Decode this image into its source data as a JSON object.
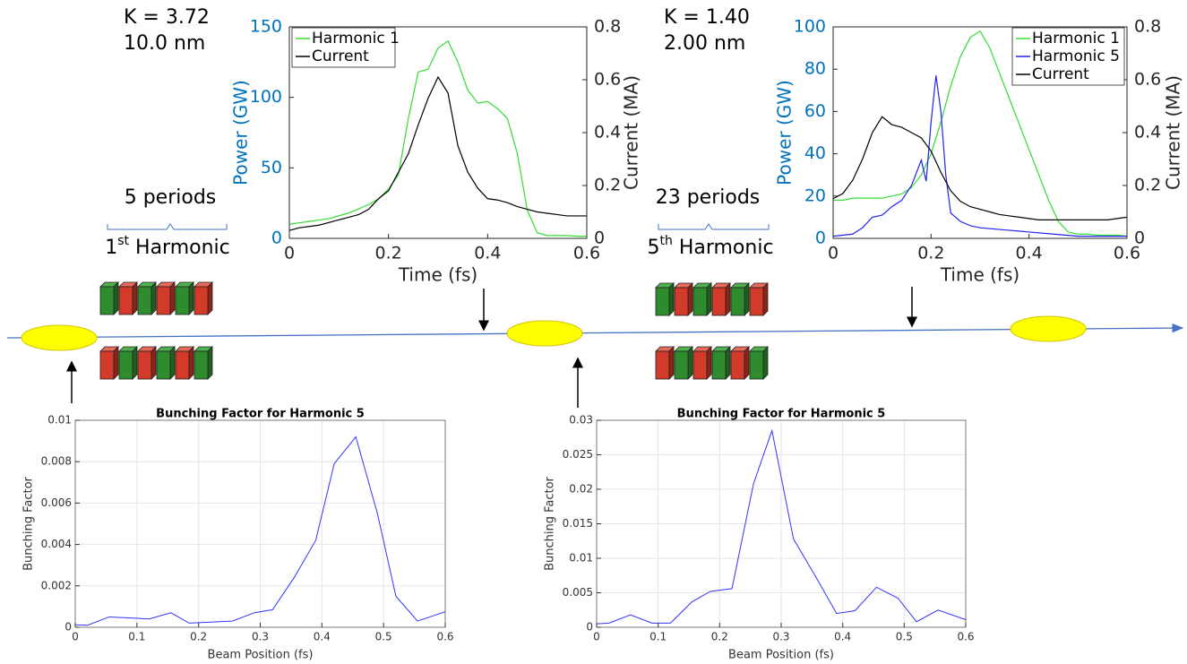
{
  "diagram": {
    "left": {
      "k": "K = 3.72",
      "wavelength": "10.0 nm",
      "periods": "5 periods",
      "harmonic": {
        "base": "1",
        "sup": "st",
        "text": " Harmonic"
      }
    },
    "right": {
      "k": "K = 1.40",
      "wavelength": "2.00 nm",
      "periods": "23 periods",
      "harmonic": {
        "base": "5",
        "sup": "th",
        "text": " Harmonic"
      }
    }
  },
  "chart_data": [
    {
      "type": "line",
      "xlabel": "Time (fs)",
      "ylabel": "Power (GW)",
      "y2label": "Current (MA)",
      "ylabel_color": "#0072bd",
      "xlim": [
        0,
        0.6
      ],
      "xticks": [
        0,
        0.2,
        0.4,
        0.6
      ],
      "ylim": [
        0,
        150
      ],
      "yticks": [
        0,
        50,
        100,
        150
      ],
      "y2lim": [
        0,
        0.8
      ],
      "y2ticks": [
        0,
        0.2,
        0.4,
        0.6,
        0.8
      ],
      "legend": "upper left",
      "grid": false,
      "x": [
        0,
        0.02,
        0.04,
        0.06,
        0.08,
        0.1,
        0.12,
        0.14,
        0.16,
        0.18,
        0.2,
        0.22,
        0.24,
        0.26,
        0.28,
        0.3,
        0.32,
        0.34,
        0.36,
        0.38,
        0.4,
        0.42,
        0.44,
        0.46,
        0.48,
        0.5,
        0.52,
        0.54,
        0.56,
        0.58,
        0.6
      ],
      "series": [
        {
          "name": "Harmonic 1",
          "color": "#33dd33",
          "values": [
            10,
            11,
            12,
            13,
            14,
            16,
            18,
            21,
            24,
            28,
            35,
            45,
            85,
            118,
            120,
            135,
            140,
            125,
            105,
            96,
            97,
            92,
            85,
            60,
            20,
            4,
            2,
            2,
            2,
            1.5,
            1.5
          ]
        },
        {
          "name": "Current",
          "color": "#000000",
          "axis": "y2",
          "values": [
            0.03,
            0.04,
            0.045,
            0.05,
            0.06,
            0.07,
            0.08,
            0.09,
            0.11,
            0.15,
            0.18,
            0.25,
            0.32,
            0.43,
            0.53,
            0.61,
            0.55,
            0.35,
            0.25,
            0.19,
            0.15,
            0.145,
            0.135,
            0.12,
            0.11,
            0.1,
            0.095,
            0.09,
            0.085,
            0.085,
            0.085
          ]
        }
      ]
    },
    {
      "type": "line",
      "xlabel": "Time (fs)",
      "ylabel": "Power (GW)",
      "y2label": "Current (MA)",
      "ylabel_color": "#0072bd",
      "xlim": [
        0,
        0.6
      ],
      "xticks": [
        0,
        0.2,
        0.4,
        0.6
      ],
      "ylim": [
        0,
        100
      ],
      "yticks": [
        0,
        20,
        40,
        60,
        80,
        100
      ],
      "y2lim": [
        0,
        0.8
      ],
      "y2ticks": [
        0,
        0.2,
        0.4,
        0.6,
        0.8
      ],
      "legend": "upper right",
      "grid": false,
      "x": [
        0,
        0.02,
        0.04,
        0.06,
        0.08,
        0.1,
        0.12,
        0.14,
        0.16,
        0.18,
        0.2,
        0.22,
        0.24,
        0.26,
        0.28,
        0.3,
        0.32,
        0.34,
        0.36,
        0.38,
        0.4,
        0.42,
        0.44,
        0.46,
        0.48,
        0.5,
        0.52,
        0.54,
        0.56,
        0.58,
        0.6
      ],
      "series": [
        {
          "name": "Harmonic 1",
          "color": "#33dd33",
          "values": [
            18,
            18,
            19,
            19,
            19,
            19,
            20,
            21,
            24,
            30,
            40,
            55,
            72,
            86,
            95,
            98,
            90,
            78,
            66,
            54,
            42,
            30,
            18,
            8,
            3,
            2,
            2,
            1.5,
            1.5,
            1.5,
            1
          ]
        },
        {
          "name": "Harmonic 5",
          "color": "#2222ee",
          "x": [
            0,
            0.04,
            0.06,
            0.08,
            0.1,
            0.12,
            0.14,
            0.16,
            0.18,
            0.19,
            0.2,
            0.21,
            0.22,
            0.23,
            0.24,
            0.26,
            0.28,
            0.3,
            0.35,
            0.4,
            0.45,
            0.5,
            0.6
          ],
          "values": [
            1,
            2,
            5,
            10,
            11,
            15,
            18,
            25,
            37,
            27,
            55,
            77,
            60,
            30,
            12,
            8,
            6,
            5,
            4,
            3,
            2,
            1,
            1
          ]
        },
        {
          "name": "Current",
          "color": "#000000",
          "axis": "y2",
          "values": [
            0.15,
            0.17,
            0.22,
            0.3,
            0.4,
            0.46,
            0.43,
            0.42,
            0.4,
            0.38,
            0.33,
            0.25,
            0.18,
            0.14,
            0.12,
            0.11,
            0.1,
            0.09,
            0.085,
            0.08,
            0.075,
            0.07,
            0.07,
            0.07,
            0.07,
            0.07,
            0.07,
            0.07,
            0.07,
            0.075,
            0.08
          ]
        }
      ]
    },
    {
      "type": "line",
      "title": "Bunching Factor for Harmonic 5",
      "xlabel": "Beam Position (fs)",
      "ylabel": "Bunching Factor",
      "color": "#3333ff",
      "grid": true,
      "xlim": [
        0,
        0.6
      ],
      "xticks": [
        0,
        0.1,
        0.2,
        0.3,
        0.4,
        0.5,
        0.6
      ],
      "ylim": [
        0,
        0.01
      ],
      "yticks": [
        0,
        0.002,
        0.004,
        0.006,
        0.008,
        0.01
      ],
      "x": [
        0,
        0.02,
        0.055,
        0.09,
        0.12,
        0.155,
        0.185,
        0.22,
        0.255,
        0.29,
        0.32,
        0.355,
        0.39,
        0.42,
        0.455,
        0.49,
        0.52,
        0.555,
        0.6
      ],
      "values": [
        0.00012,
        0.0001,
        0.0005,
        0.00045,
        0.0004,
        0.0007,
        0.0002,
        0.00025,
        0.0003,
        0.0007,
        0.00085,
        0.0024,
        0.0042,
        0.0079,
        0.0092,
        0.0055,
        0.0015,
        0.0003,
        0.00075
      ]
    },
    {
      "type": "line",
      "title": "Bunching Factor for Harmonic 5",
      "xlabel": "Beam Position (fs)",
      "ylabel": "Bunching Factor",
      "color": "#3333ff",
      "grid": true,
      "xlim": [
        0,
        0.6
      ],
      "xticks": [
        0,
        0.1,
        0.2,
        0.3,
        0.4,
        0.5,
        0.6
      ],
      "ylim": [
        0,
        0.03
      ],
      "yticks": [
        0,
        0.005,
        0.01,
        0.015,
        0.02,
        0.025,
        0.03
      ],
      "x": [
        0,
        0.02,
        0.055,
        0.09,
        0.12,
        0.155,
        0.185,
        0.22,
        0.255,
        0.285,
        0.32,
        0.355,
        0.39,
        0.42,
        0.455,
        0.49,
        0.52,
        0.555,
        0.6
      ],
      "values": [
        0.0005,
        0.0006,
        0.0018,
        0.0006,
        0.0006,
        0.0037,
        0.0052,
        0.0056,
        0.0208,
        0.0285,
        0.0128,
        0.0075,
        0.002,
        0.0024,
        0.0058,
        0.0042,
        0.0008,
        0.0025,
        0.0011
      ]
    }
  ]
}
